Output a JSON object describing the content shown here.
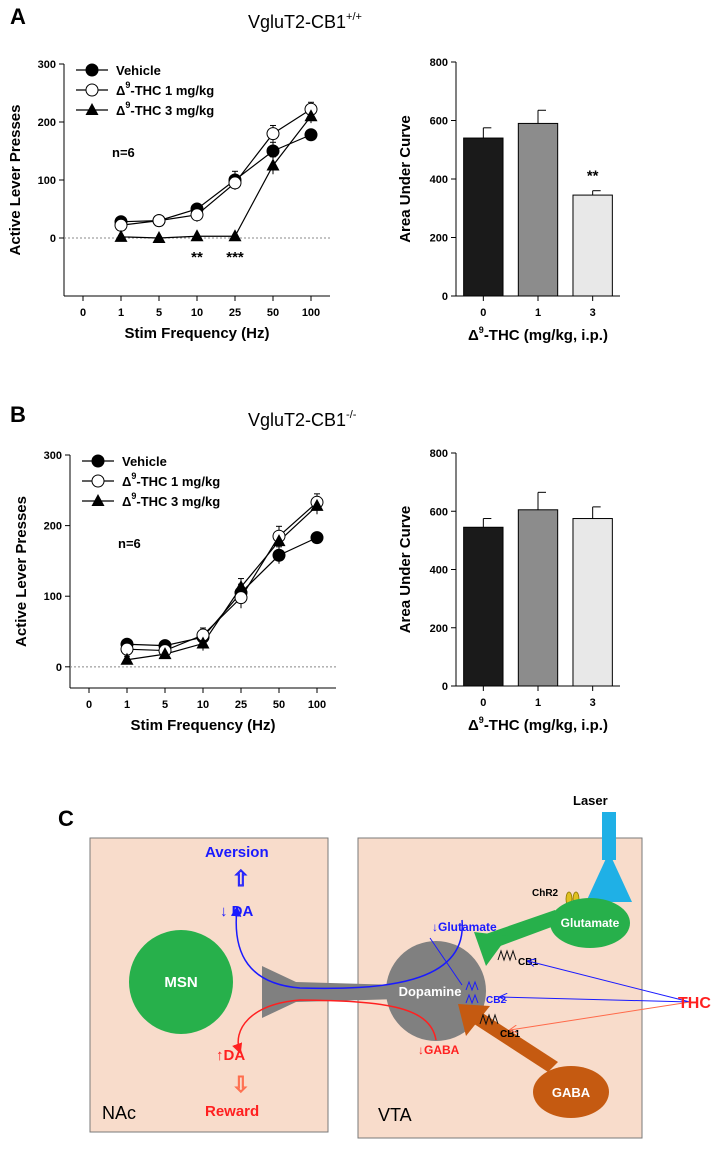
{
  "panel_labels": {
    "a": "A",
    "b": "B",
    "c": "C"
  },
  "colors": {
    "vehicle": "#000000",
    "thc1": "#ffffff",
    "thc3": "#000000",
    "bar0": "#1a1a1a",
    "bar1": "#8c8c8c",
    "bar3": "#e8e8e8",
    "box_bg": "#f8dccb",
    "msn": "#27b04b",
    "glutamate": "#27b04b",
    "gaba": "#c55a11",
    "dopamine": "#808080",
    "laser": "#1fb0e6",
    "blue_text": "#1a1aff",
    "red_text": "#ff2020"
  },
  "chart_data": [
    {
      "id": "A-left",
      "type": "line",
      "genotype_prefix": "VgluT2-CB1",
      "genotype_sup": "+/+",
      "xlabel": "Stim Frequency (Hz)",
      "ylabel": "Active Lever Presses",
      "x_ticks": [
        "0",
        "1",
        "5",
        "10",
        "25",
        "50",
        "100"
      ],
      "y_ticks": [
        "0",
        "100",
        "200",
        "300"
      ],
      "ylim": [
        -100,
        300
      ],
      "categories": [
        "1",
        "5",
        "10",
        "25",
        "50",
        "100"
      ],
      "annotation": "n=6",
      "sig_marks": [
        {
          "x": "10",
          "text": "**"
        },
        {
          "x": "25",
          "text": "***"
        }
      ],
      "series": [
        {
          "name_pre": "Vehicle",
          "name_sup": "",
          "name_post": "",
          "marker": "circle-filled",
          "values": [
            28,
            30,
            50,
            100,
            150,
            178
          ],
          "errors": [
            5,
            4,
            8,
            15,
            15,
            6
          ]
        },
        {
          "name_pre": "Δ",
          "name_sup": "9",
          "name_post": "-THC 1 mg/kg",
          "marker": "circle-open",
          "values": [
            22,
            30,
            40,
            95,
            180,
            222
          ],
          "errors": [
            8,
            5,
            12,
            12,
            14,
            12
          ]
        },
        {
          "name_pre": "Δ",
          "name_sup": "9",
          "name_post": "-THC 3 mg/kg",
          "marker": "triangle-filled",
          "values": [
            2,
            0,
            3,
            3,
            125,
            210
          ],
          "errors": [
            2,
            2,
            2,
            2,
            15,
            12
          ]
        }
      ]
    },
    {
      "id": "A-right",
      "type": "bar",
      "xlabel_pre": "Δ",
      "xlabel_sup": "9",
      "xlabel_post": "-THC (mg/kg, i.p.)",
      "ylabel": "Area Under Curve",
      "categories": [
        "0",
        "1",
        "3"
      ],
      "values": [
        540,
        590,
        345
      ],
      "errors": [
        35,
        45,
        15
      ],
      "y_ticks": [
        "0",
        "200",
        "400",
        "600",
        "800"
      ],
      "ylim": [
        0,
        800
      ],
      "sig_marks": [
        {
          "x": "3",
          "text": "**"
        }
      ]
    },
    {
      "id": "B-left",
      "type": "line",
      "genotype_prefix": "VgluT2-CB1",
      "genotype_sup": "-/-",
      "xlabel": "Stim Frequency (Hz)",
      "ylabel": "Active Lever Presses",
      "x_ticks": [
        "0",
        "1",
        "5",
        "10",
        "25",
        "50",
        "100"
      ],
      "y_ticks": [
        "0",
        "100",
        "200",
        "300"
      ],
      "ylim": [
        -30,
        300
      ],
      "categories": [
        "1",
        "5",
        "10",
        "25",
        "50",
        "100"
      ],
      "annotation": "n=6",
      "sig_marks": [],
      "series": [
        {
          "name_pre": "Vehicle",
          "name_sup": "",
          "name_post": "",
          "marker": "circle-filled",
          "values": [
            32,
            30,
            42,
            105,
            158,
            183
          ],
          "errors": [
            5,
            5,
            8,
            12,
            12,
            6
          ]
        },
        {
          "name_pre": "Δ",
          "name_sup": "9",
          "name_post": "-THC 1 mg/kg",
          "marker": "circle-open",
          "values": [
            25,
            23,
            45,
            98,
            185,
            233
          ],
          "errors": [
            8,
            6,
            10,
            15,
            14,
            12
          ]
        },
        {
          "name_pre": "Δ",
          "name_sup": "9",
          "name_post": "-THC 3 mg/kg",
          "marker": "triangle-filled",
          "values": [
            10,
            18,
            33,
            113,
            178,
            228
          ],
          "errors": [
            5,
            5,
            10,
            12,
            10,
            12
          ]
        }
      ]
    },
    {
      "id": "B-right",
      "type": "bar",
      "xlabel_pre": "Δ",
      "xlabel_sup": "9",
      "xlabel_post": "-THC (mg/kg, i.p.)",
      "ylabel": "Area Under Curve",
      "categories": [
        "0",
        "1",
        "3"
      ],
      "values": [
        545,
        605,
        575
      ],
      "errors": [
        30,
        60,
        40
      ],
      "y_ticks": [
        "0",
        "200",
        "400",
        "600",
        "800"
      ],
      "ylim": [
        0,
        800
      ],
      "sig_marks": []
    }
  ],
  "schematic": {
    "laser": "Laser",
    "chr2": "ChR2",
    "glutamate_cell": "Glutamate",
    "glutamate_arrow": "↓Glutamate",
    "aversion": "Aversion",
    "hollow_up": "⇧",
    "hollow_down": "⇩",
    "da_down": "↓ DA",
    "da_up": "↑DA",
    "reward": "Reward",
    "msn": "MSN",
    "dopamine": "Dopamine",
    "cb1_top": "CB1",
    "cb2": "CB2",
    "cb1_bottom": "CB1",
    "gaba_arrow": "↓GABA",
    "gaba_cell": "GABA",
    "thc": "THC",
    "nac": "NAc",
    "vta": "VTA"
  }
}
